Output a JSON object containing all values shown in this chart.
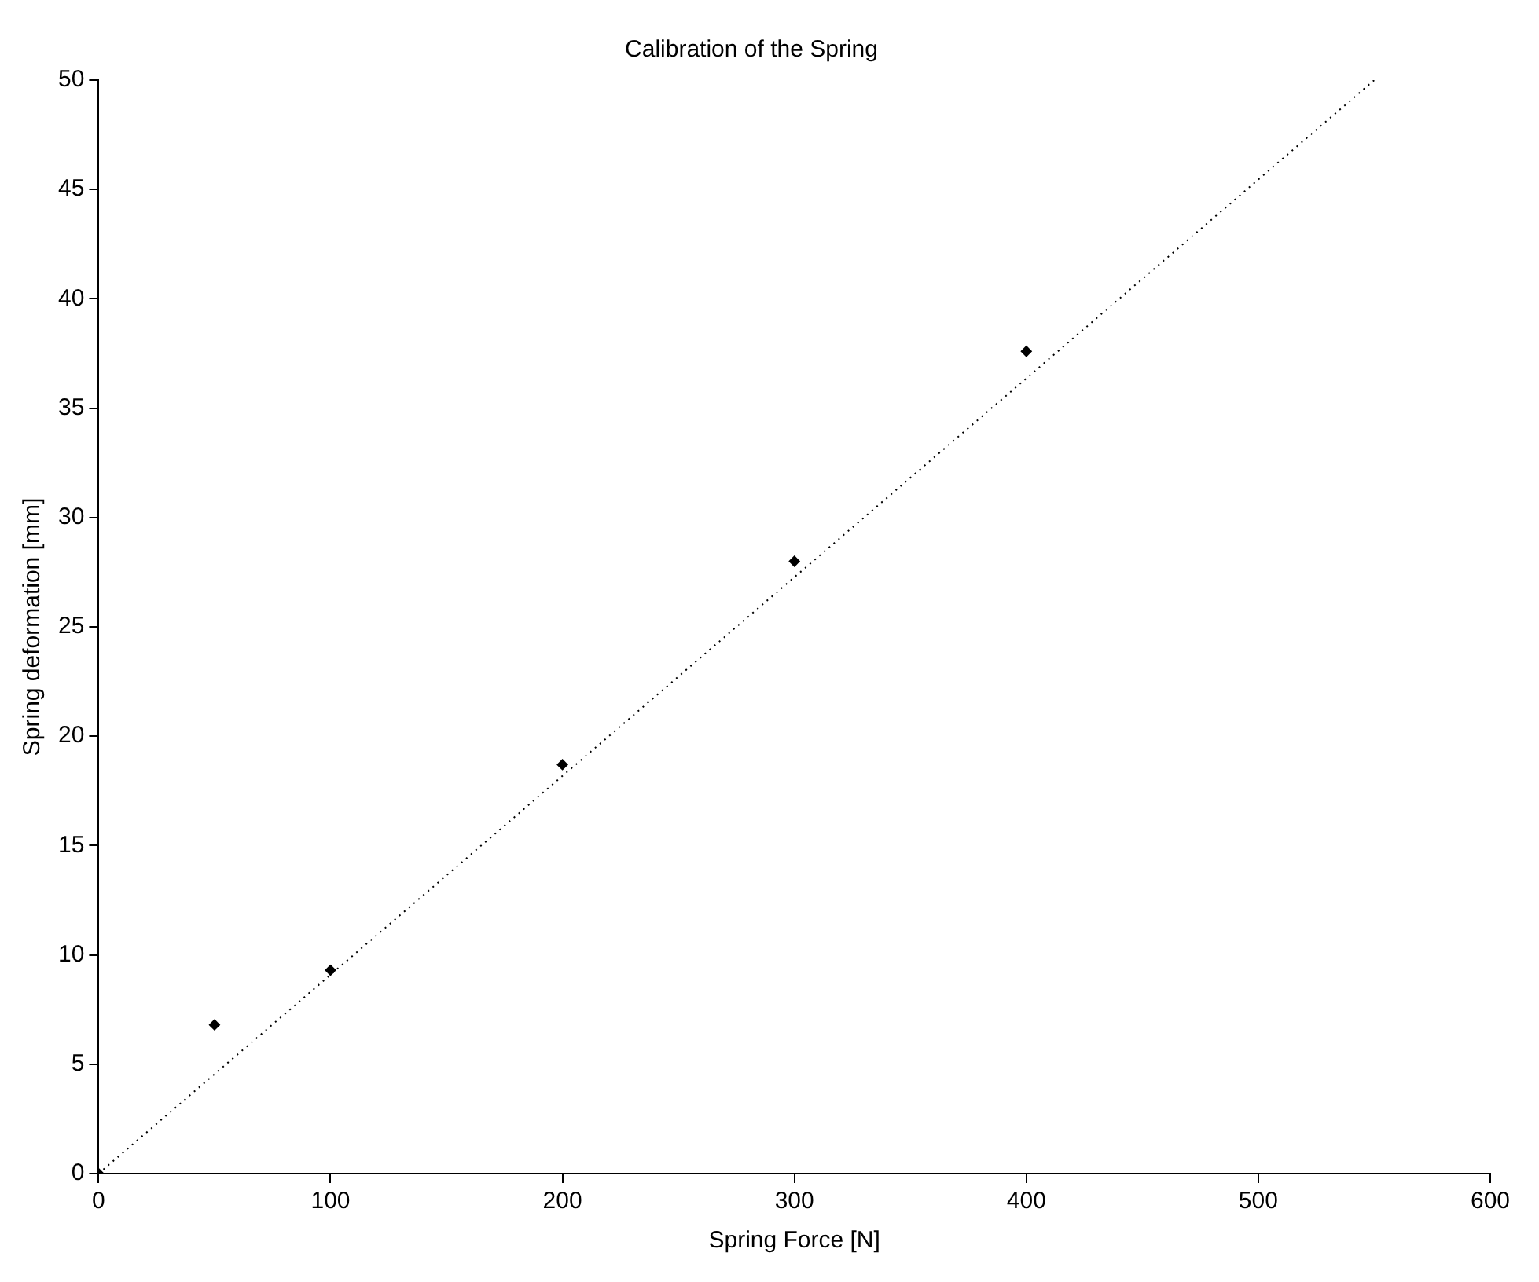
{
  "chart_data": {
    "type": "scatter",
    "title": "Calibration of the Spring",
    "xlabel": "Spring Force [N]",
    "ylabel": "Spring deformation [mm]",
    "xlim": [
      0,
      600
    ],
    "xticks": [
      0,
      100,
      200,
      300,
      400,
      500,
      600
    ],
    "ylim": [
      0,
      50
    ],
    "yticks": [
      0,
      5,
      10,
      15,
      20,
      25,
      30,
      35,
      40,
      45,
      50
    ],
    "grid": false,
    "legend": false,
    "marker": "diamond",
    "series": [
      {
        "color": "#000000",
        "x": [
          0,
          50,
          100,
          200,
          300,
          400
        ],
        "values": [
          0,
          6.8,
          9.3,
          18.7,
          28.0,
          37.6
        ]
      },
      {
        "type": "line",
        "color": "#000000",
        "line_style": "dotted",
        "marker": "none",
        "x": [
          0,
          550
        ],
        "values": [
          0,
          50
        ]
      }
    ]
  }
}
